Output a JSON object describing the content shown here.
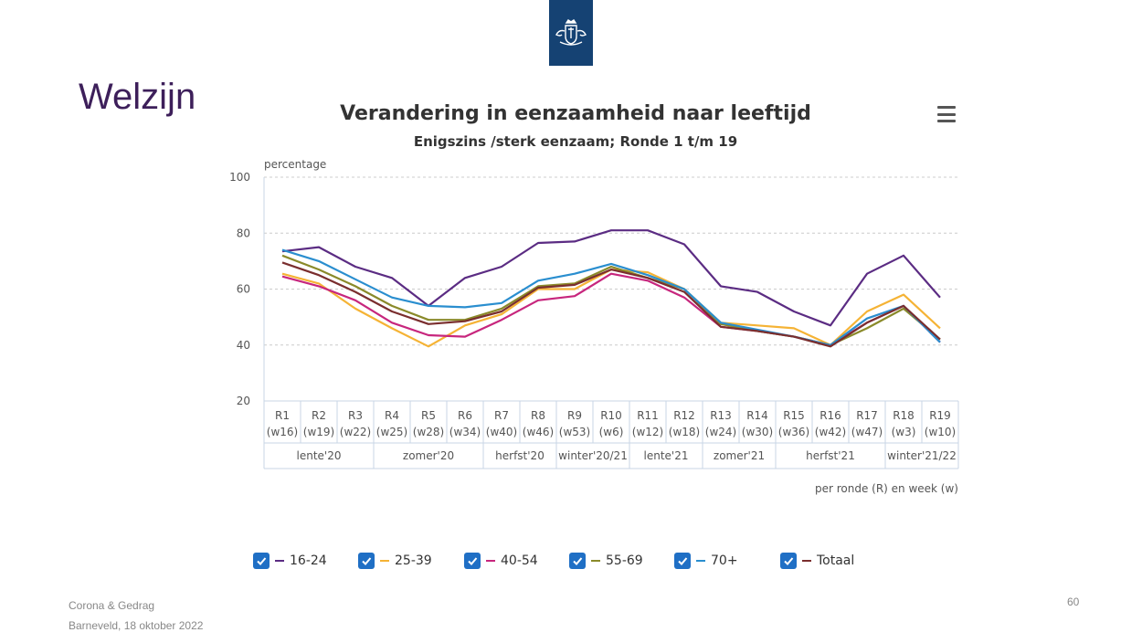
{
  "slide": {
    "title": "Welzijn",
    "footer_line1": "Corona & Gedrag",
    "footer_line2": "Barneveld, 18 oktober 2022",
    "page_number": "60"
  },
  "colors": {
    "logo_bg": "#154273",
    "title_color": "#3d1f5a",
    "checkbox": "#1f6fc5"
  },
  "icons": [
    "rijksoverheid-logo-icon",
    "menu-icon",
    "check-icon"
  ],
  "chart_data": {
    "type": "line",
    "title": "Verandering in eenzaamheid naar leeftijd",
    "subtitle": "Enigszins /sterk eenzaam; Ronde 1 t/m 19",
    "ylabel": "percentage",
    "xlabel": "per ronde (R) en week (w)",
    "ylim": [
      20,
      100
    ],
    "yticks": [
      20,
      40,
      60,
      80,
      100
    ],
    "grid": true,
    "legend_position": "bottom",
    "categories": [
      {
        "round": "R1",
        "week": "(w16)"
      },
      {
        "round": "R2",
        "week": "(w19)"
      },
      {
        "round": "R3",
        "week": "(w22)"
      },
      {
        "round": "R4",
        "week": "(w25)"
      },
      {
        "round": "R5",
        "week": "(w28)"
      },
      {
        "round": "R6",
        "week": "(w34)"
      },
      {
        "round": "R7",
        "week": "(w40)"
      },
      {
        "round": "R8",
        "week": "(w46)"
      },
      {
        "round": "R9",
        "week": "(w53)"
      },
      {
        "round": "R10",
        "week": "(w6)"
      },
      {
        "round": "R11",
        "week": "(w12)"
      },
      {
        "round": "R12",
        "week": "(w18)"
      },
      {
        "round": "R13",
        "week": "(w24)"
      },
      {
        "round": "R14",
        "week": "(w30)"
      },
      {
        "round": "R15",
        "week": "(w36)"
      },
      {
        "round": "R16",
        "week": "(w42)"
      },
      {
        "round": "R17",
        "week": "(w47)"
      },
      {
        "round": "R18",
        "week": "(w3)"
      },
      {
        "round": "R19",
        "week": "(w10)"
      }
    ],
    "groups": [
      {
        "label": "lente'20",
        "span": 3
      },
      {
        "label": "zomer'20",
        "span": 3
      },
      {
        "label": "herfst'20",
        "span": 2
      },
      {
        "label": "winter'20/21",
        "span": 2
      },
      {
        "label": "lente'21",
        "span": 2
      },
      {
        "label": "zomer'21",
        "span": 2
      },
      {
        "label": "herfst'21",
        "span": 3
      },
      {
        "label": "winter'21/22",
        "span": 2
      }
    ],
    "series": [
      {
        "name": "16-24",
        "color": "#5b2c83",
        "values": [
          73.5,
          75,
          68,
          64,
          54,
          64,
          68,
          76.5,
          77,
          81,
          81,
          76,
          61,
          59,
          52,
          47,
          65.5,
          72,
          57
        ]
      },
      {
        "name": "25-39",
        "color": "#f5b335",
        "values": [
          65.5,
          62,
          53,
          46,
          39.5,
          47,
          51,
          60,
          60,
          67,
          66,
          60,
          48,
          47,
          46,
          40,
          52,
          58,
          46
        ]
      },
      {
        "name": "40-54",
        "color": "#c7267d",
        "values": [
          64.5,
          61,
          56,
          48,
          43.5,
          43,
          49,
          56,
          57.5,
          65.5,
          63,
          57,
          46.5,
          45,
          43,
          40,
          48,
          54,
          41
        ]
      },
      {
        "name": "55-69",
        "color": "#8a8a2a",
        "values": [
          72,
          67,
          61,
          54,
          49,
          49,
          53,
          61,
          62,
          68,
          64,
          60,
          47.5,
          45,
          43,
          40,
          46,
          53,
          42
        ]
      },
      {
        "name": "70+",
        "color": "#2a8ecf",
        "values": [
          74,
          70,
          63.5,
          57,
          54,
          53.5,
          55,
          63,
          65.5,
          69,
          65,
          60,
          48,
          45.5,
          43,
          40,
          49.5,
          54,
          41
        ]
      },
      {
        "name": "Totaal",
        "color": "#7a2e2e",
        "values": [
          69.5,
          65,
          59,
          52,
          47.5,
          48.5,
          52,
          60.5,
          61.5,
          67,
          64,
          59,
          46.5,
          45,
          43,
          39.5,
          48,
          54,
          42
        ]
      }
    ]
  }
}
